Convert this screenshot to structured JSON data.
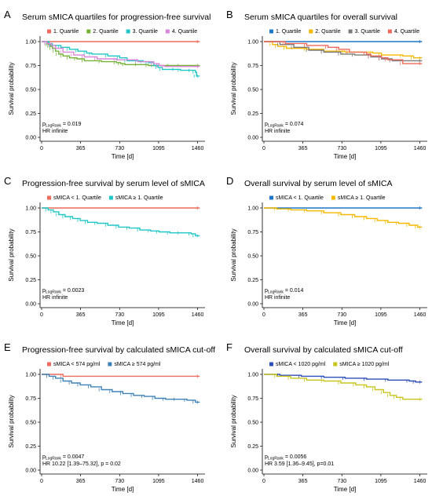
{
  "figure": {
    "y_axis_label": "Survival probability",
    "x_axis_label": "Time [d]"
  },
  "chart_data": [
    {
      "letter": "A",
      "type": "line",
      "title": "Serum sMICA quartiles for progression-free survival",
      "xlabel": "Time [d]",
      "ylabel": "Survival probability",
      "xlim": [
        0,
        1500
      ],
      "ylim": [
        0,
        1
      ],
      "xticks": [
        "0",
        "365",
        "730",
        "1095",
        "1460"
      ],
      "yticks": [
        "0.00",
        "0.25",
        "0.50",
        "0.75",
        "1.00"
      ],
      "legend": "top",
      "series": [
        {
          "name": "1. Quartile",
          "color": "#ee6a5a",
          "x": [
            0,
            1480
          ],
          "y": [
            1.0,
            1.0
          ]
        },
        {
          "name": "2. Quartile",
          "color": "#74b234",
          "x": [
            0,
            60,
            80,
            100,
            130,
            160,
            200,
            260,
            330,
            400,
            560,
            700,
            740,
            780,
            900,
            1000,
            1100,
            1200,
            1300,
            1480
          ],
          "y": [
            1.0,
            0.97,
            0.95,
            0.93,
            0.9,
            0.87,
            0.85,
            0.83,
            0.82,
            0.8,
            0.79,
            0.78,
            0.77,
            0.76,
            0.76,
            0.75,
            0.75,
            0.75,
            0.75,
            0.75
          ]
        },
        {
          "name": "3. Quartile",
          "color": "#21c6c6",
          "x": [
            0,
            70,
            100,
            180,
            260,
            340,
            420,
            470,
            620,
            730,
            800,
            950,
            1000,
            1050,
            1090,
            1130,
            1250,
            1300,
            1400,
            1440,
            1450,
            1480
          ],
          "y": [
            1.0,
            0.98,
            0.96,
            0.94,
            0.92,
            0.9,
            0.88,
            0.87,
            0.85,
            0.83,
            0.8,
            0.79,
            0.78,
            0.75,
            0.73,
            0.71,
            0.71,
            0.7,
            0.7,
            0.68,
            0.64,
            0.64
          ]
        },
        {
          "name": "4. Quartile",
          "color": "#d986d9",
          "x": [
            0,
            50,
            90,
            130,
            200,
            300,
            400,
            520,
            700,
            900,
            1050,
            1100,
            1150,
            1480
          ],
          "y": [
            1.0,
            0.98,
            0.96,
            0.93,
            0.89,
            0.86,
            0.84,
            0.82,
            0.81,
            0.79,
            0.77,
            0.75,
            0.74,
            0.74
          ]
        }
      ],
      "stat_p": "0.019",
      "stat_hr": "HR infinite"
    },
    {
      "letter": "B",
      "type": "line",
      "title": "Serum sMICA quartiles for overall survival",
      "xlabel": "Time [d]",
      "ylabel": "Survival probability",
      "xlim": [
        0,
        1500
      ],
      "ylim": [
        0,
        1
      ],
      "xticks": [
        "0",
        "365",
        "730",
        "1095",
        "1460"
      ],
      "yticks": [
        "0.00",
        "0.25",
        "0.50",
        "0.75",
        "1.00"
      ],
      "legend": "top",
      "series": [
        {
          "name": "1. Quartile",
          "color": "#1f77c8",
          "x": [
            0,
            1480
          ],
          "y": [
            1.0,
            1.0
          ]
        },
        {
          "name": "2. Quartile",
          "color": "#f5b800",
          "x": [
            0,
            80,
            130,
            210,
            400,
            560,
            760,
            1020,
            1100,
            1300,
            1400,
            1480
          ],
          "y": [
            1.0,
            0.97,
            0.95,
            0.93,
            0.92,
            0.9,
            0.89,
            0.88,
            0.86,
            0.85,
            0.83,
            0.83
          ]
        },
        {
          "name": "3. Quartile",
          "color": "#7a7a7a",
          "x": [
            0,
            150,
            280,
            420,
            560,
            720,
            850,
            1000,
            1100,
            1200,
            1480
          ],
          "y": [
            1.0,
            0.97,
            0.94,
            0.91,
            0.89,
            0.87,
            0.86,
            0.84,
            0.82,
            0.8,
            0.8
          ]
        },
        {
          "name": "4. Quartile",
          "color": "#ee6a5a",
          "x": [
            0,
            200,
            400,
            600,
            700,
            800,
            960,
            1000,
            1100,
            1160,
            1300,
            1480
          ],
          "y": [
            1.0,
            0.98,
            0.96,
            0.94,
            0.92,
            0.89,
            0.87,
            0.85,
            0.83,
            0.81,
            0.77,
            0.77
          ]
        }
      ],
      "stat_p": "0.074",
      "stat_hr": "HR infinite"
    },
    {
      "letter": "C",
      "type": "line",
      "title": "Progression-free survival by serum level of sMICA",
      "xlabel": "Time [d]",
      "ylabel": "Survival probability",
      "xlim": [
        0,
        1500
      ],
      "ylim": [
        0,
        1
      ],
      "xticks": [
        "0",
        "365",
        "730",
        "1095",
        "1460"
      ],
      "yticks": [
        "0.00",
        "0.25",
        "0.50",
        "0.75",
        "1.00"
      ],
      "legend": "top",
      "series": [
        {
          "name": "sMICA < 1. Quartile",
          "color": "#ee6a5a",
          "x": [
            0,
            1480
          ],
          "y": [
            1.0,
            1.0
          ]
        },
        {
          "name": "sMICA ≥ 1. Quartile",
          "color": "#21c6c6",
          "x": [
            0,
            60,
            110,
            160,
            220,
            290,
            360,
            430,
            520,
            620,
            720,
            820,
            920,
            1020,
            1100,
            1200,
            1300,
            1400,
            1440,
            1480
          ],
          "y": [
            1.0,
            0.98,
            0.96,
            0.93,
            0.91,
            0.89,
            0.87,
            0.85,
            0.84,
            0.82,
            0.8,
            0.79,
            0.77,
            0.76,
            0.75,
            0.74,
            0.74,
            0.73,
            0.71,
            0.71
          ]
        }
      ],
      "stat_p": "0.0023",
      "stat_hr": "HR infinite"
    },
    {
      "letter": "D",
      "type": "line",
      "title": "Overall survival by serum level of sMICA",
      "xlabel": "Time [d]",
      "ylabel": "Survival probability",
      "xlim": [
        0,
        1500
      ],
      "ylim": [
        0,
        1
      ],
      "xticks": [
        "0",
        "365",
        "730",
        "1095",
        "1460"
      ],
      "yticks": [
        "0.00",
        "0.25",
        "0.50",
        "0.75",
        "1.00"
      ],
      "legend": "top",
      "series": [
        {
          "name": "sMICA < 1. Quartile",
          "color": "#1f77c8",
          "x": [
            0,
            1480
          ],
          "y": [
            1.0,
            1.0
          ]
        },
        {
          "name": "sMICA ≥ 1. Quartile",
          "color": "#f5b800",
          "x": [
            0,
            120,
            250,
            400,
            560,
            720,
            850,
            960,
            1060,
            1160,
            1260,
            1360,
            1440,
            1480
          ],
          "y": [
            1.0,
            0.99,
            0.98,
            0.97,
            0.95,
            0.93,
            0.91,
            0.89,
            0.87,
            0.85,
            0.84,
            0.82,
            0.8,
            0.8
          ]
        }
      ],
      "stat_p": "0.014",
      "stat_hr": "HR infinite"
    },
    {
      "letter": "E",
      "type": "line",
      "title": "Progression-free survival by calculated sMICA cut-off",
      "xlabel": "Time [d]",
      "ylabel": "Survival probability",
      "xlim": [
        0,
        1500
      ],
      "ylim": [
        0,
        1
      ],
      "xticks": [
        "0",
        "365",
        "730",
        "1095",
        "1460"
      ],
      "yticks": [
        "0.00",
        "0.25",
        "0.50",
        "0.75",
        "1.00"
      ],
      "legend": "top",
      "series": [
        {
          "name": "sMICA < 574 pg/ml",
          "color": "#ee6a5a",
          "x": [
            0,
            200,
            1480
          ],
          "y": [
            1.0,
            0.98,
            0.98
          ]
        },
        {
          "name": "sMICA ≥ 574 pg/ml",
          "color": "#3f82b8",
          "x": [
            0,
            70,
            130,
            200,
            280,
            360,
            460,
            560,
            660,
            760,
            860,
            960,
            1060,
            1160,
            1260,
            1360,
            1440,
            1480
          ],
          "y": [
            1.0,
            0.98,
            0.96,
            0.93,
            0.91,
            0.89,
            0.87,
            0.84,
            0.82,
            0.8,
            0.78,
            0.77,
            0.75,
            0.74,
            0.74,
            0.73,
            0.71,
            0.71
          ]
        }
      ],
      "stat_p": "0.0047",
      "stat_hr": "HR 10.22 [1.39–75.32], p = 0.02"
    },
    {
      "letter": "F",
      "type": "line",
      "title": "Overall survival by calculated sMICA cut-off",
      "xlabel": "Time [d]",
      "ylabel": "Survival probability",
      "xlim": [
        0,
        1500
      ],
      "ylim": [
        0,
        1
      ],
      "xticks": [
        "0",
        "365",
        "730",
        "1095",
        "1460"
      ],
      "yticks": [
        "0.00",
        "0.25",
        "0.50",
        "0.75",
        "1.00"
      ],
      "legend": "top",
      "series": [
        {
          "name": "sMICA < 1020 pg/ml",
          "color": "#2f4fb8",
          "x": [
            0,
            150,
            350,
            560,
            760,
            960,
            1160,
            1360,
            1420,
            1480
          ],
          "y": [
            1.0,
            0.99,
            0.98,
            0.97,
            0.96,
            0.95,
            0.94,
            0.93,
            0.92,
            0.92
          ]
        },
        {
          "name": "sMICA ≥ 1020 pg/ml",
          "color": "#c9c51e",
          "x": [
            0,
            120,
            250,
            400,
            560,
            720,
            860,
            960,
            1040,
            1120,
            1180,
            1240,
            1300,
            1480
          ],
          "y": [
            1.0,
            0.98,
            0.96,
            0.94,
            0.93,
            0.91,
            0.89,
            0.87,
            0.84,
            0.81,
            0.78,
            0.76,
            0.74,
            0.74
          ]
        }
      ],
      "stat_p": "0.0056",
      "stat_hr": "HR 3.59 [1.36–9.45], p=0.01"
    }
  ]
}
